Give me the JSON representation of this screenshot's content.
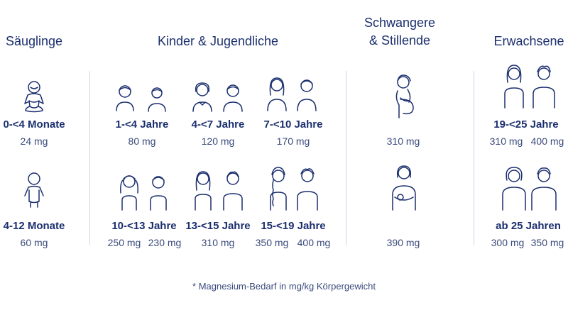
{
  "sections": {
    "saeuglinge": "Säuglinge",
    "kinder": "Kinder & Jugendliche",
    "schwangere_line1": "Schwangere",
    "schwangere_line2": "& Stillende",
    "erwachsene": "Erwachsene"
  },
  "groups": {
    "s1": {
      "label": "0-<4 Monate",
      "value": "24 mg"
    },
    "s2": {
      "label": "4-12 Monate",
      "value": "60 mg"
    },
    "k1": {
      "label": "1-<4 Jahre",
      "value": "80 mg"
    },
    "k2": {
      "label": "4-<7 Jahre",
      "value": "120 mg"
    },
    "k3": {
      "label": "7-<10 Jahre",
      "value": "170 mg"
    },
    "k4": {
      "label": "10-<13 Jahre",
      "value_f": "250 mg",
      "value_m": "230 mg"
    },
    "k5": {
      "label": "13-<15 Jahre",
      "value": "310 mg"
    },
    "k6": {
      "label": "15-<19 Jahre",
      "value_f": "350 mg",
      "value_m": "400 mg"
    },
    "p1": {
      "value": "310 mg"
    },
    "p2": {
      "value": "390 mg"
    },
    "e1": {
      "label": "19-<25 Jahre",
      "value_f": "310 mg",
      "value_m": "400 mg"
    },
    "e2": {
      "label": "ab 25 Jahren",
      "value_f": "300 mg",
      "value_m": "350 mg"
    }
  },
  "footnote": "* Magnesium-Bedarf in mg/kg Körpergewicht",
  "colors": {
    "text": "#1b2f6e",
    "divider": "#cfd5e6"
  }
}
